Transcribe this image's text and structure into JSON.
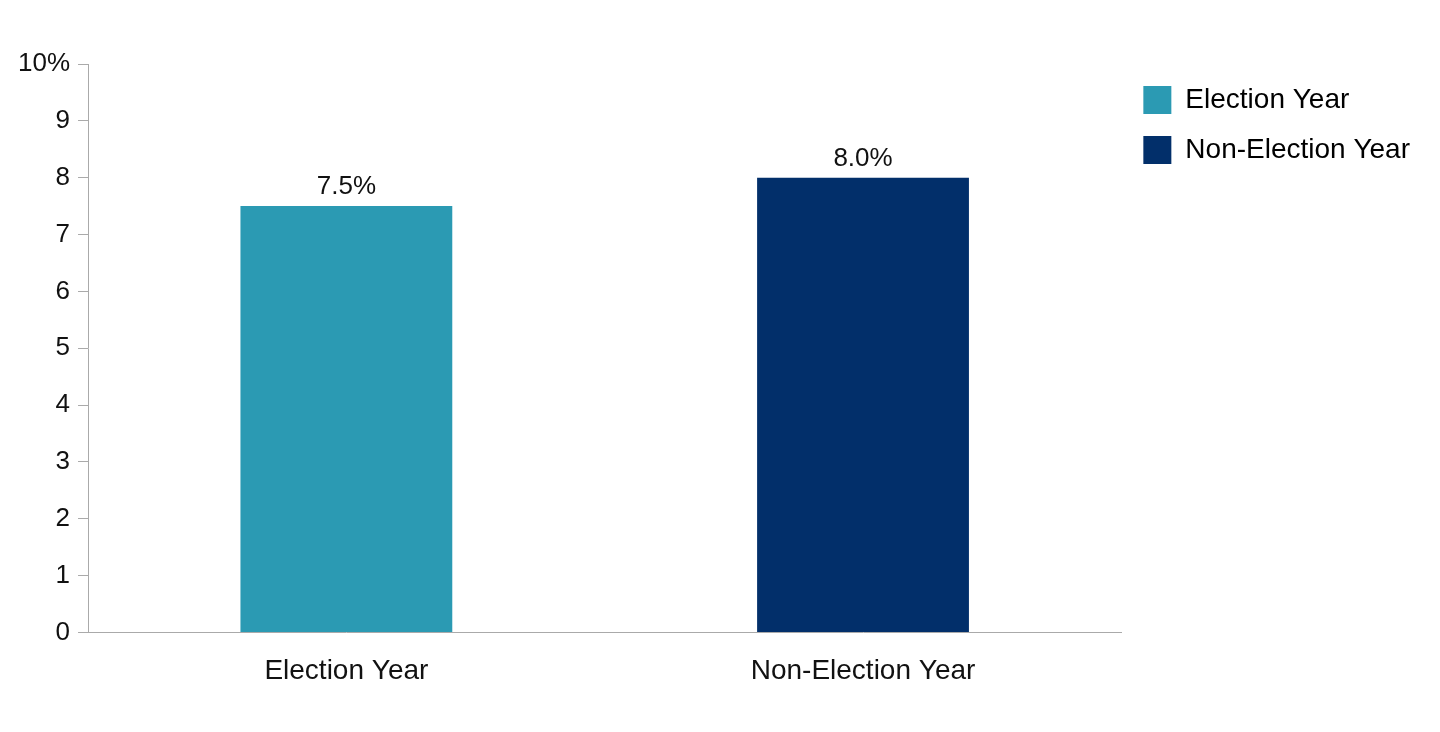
{
  "chart_data": {
    "type": "bar",
    "categories": [
      "Election Year",
      "Non-Election Year"
    ],
    "values": [
      7.5,
      8.0
    ],
    "value_labels": [
      "7.5%",
      "8.0%"
    ],
    "colors": [
      "#2b9ab3",
      "#022f6a"
    ],
    "ylim": [
      0,
      10
    ],
    "yticks": [
      0,
      1,
      2,
      3,
      4,
      5,
      6,
      7,
      8,
      9,
      {
        "value": 10,
        "label": "10%"
      }
    ],
    "grid": false,
    "legend": "top-right",
    "data_labels": true
  }
}
